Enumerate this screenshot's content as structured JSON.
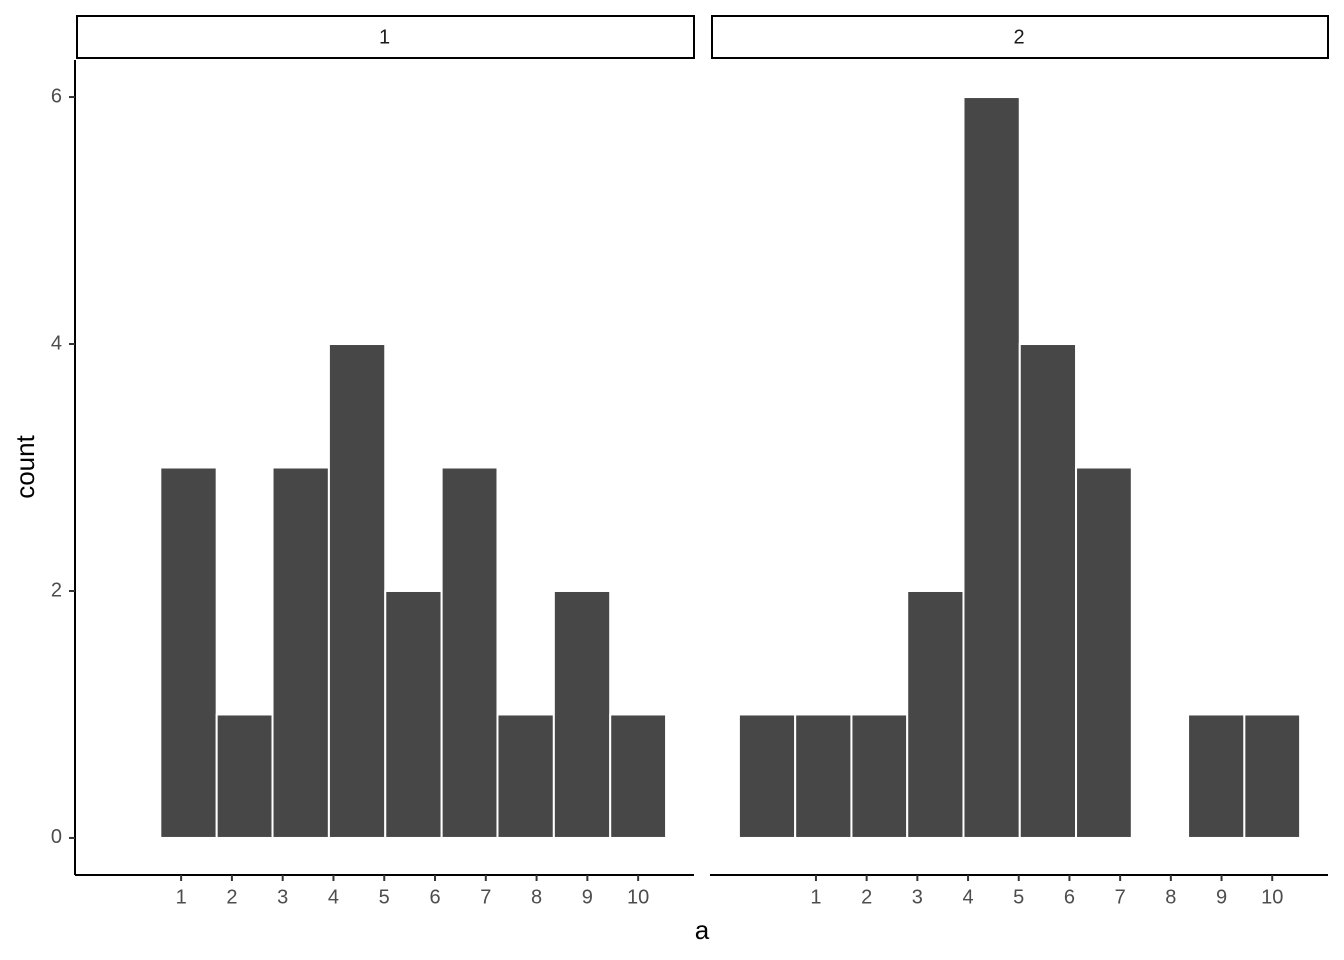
{
  "chart_data": {
    "type": "histogram",
    "x_label": "a",
    "y_label": "count",
    "color": "#474747",
    "xlim": [
      -1.09,
      11.1
    ],
    "xticks": [
      1,
      2,
      3,
      4,
      5,
      6,
      7,
      8,
      9,
      10
    ],
    "ylim": [
      -0.3,
      6.3
    ],
    "yticks": [
      0,
      2,
      4,
      6
    ],
    "panels": [
      {
        "title": "1",
        "bins": [
          0.59,
          1.7,
          2.8,
          3.91,
          5.02,
          6.13,
          7.23,
          8.34,
          9.45,
          10.55
        ],
        "values": [
          3,
          1,
          3,
          4,
          2,
          3,
          1,
          2,
          1
        ]
      },
      {
        "title": "2",
        "bins": [
          -0.52,
          0.59,
          1.7,
          2.8,
          3.91,
          5.02,
          6.13,
          7.23,
          8.34,
          9.45,
          10.55
        ],
        "values": [
          1,
          1,
          1,
          2,
          6,
          4,
          3,
          0,
          1,
          1
        ]
      }
    ]
  }
}
